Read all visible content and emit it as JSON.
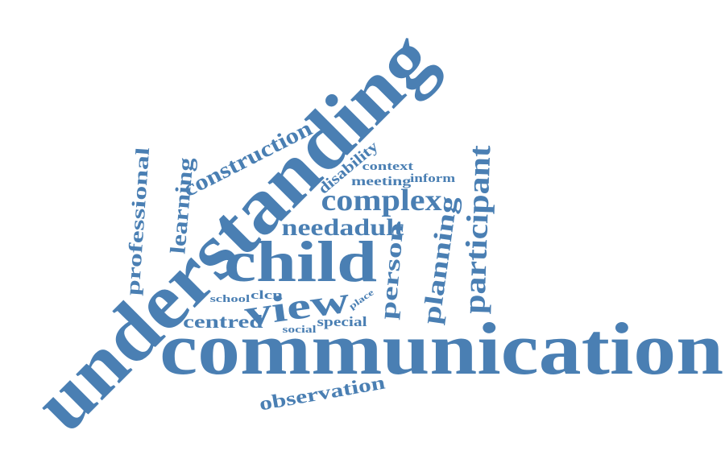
{
  "word_cloud": {
    "color": "#4a7fb3",
    "words": [
      "understanding",
      "communication",
      "child",
      "complex",
      "view",
      "participant",
      "planning",
      "construction",
      "learning",
      "professional",
      "needadult",
      "person",
      "observation",
      "centred",
      "disability",
      "context",
      "meeting",
      "inform",
      "school",
      "clcn",
      "place",
      "special",
      "social"
    ]
  }
}
